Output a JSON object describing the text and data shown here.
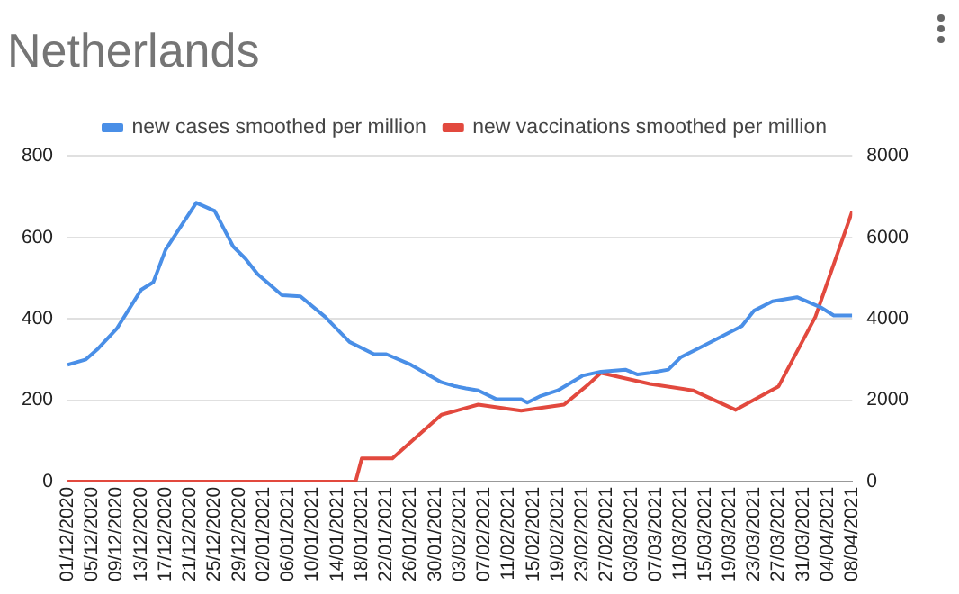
{
  "chart_data": {
    "type": "line",
    "title": "Netherlands",
    "legend": "top",
    "grid": "y",
    "marker": "none",
    "line_style": "solid",
    "xlim": [
      "2020-12-01",
      "2021-04-08"
    ],
    "xticks": [
      {
        "value": "2020-12-01",
        "label": "01/12/2020"
      },
      {
        "value": "2020-12-05",
        "label": "05/12/2020"
      },
      {
        "value": "2020-12-09",
        "label": "09/12/2020"
      },
      {
        "value": "2020-12-13",
        "label": "13/12/2020"
      },
      {
        "value": "2020-12-17",
        "label": "17/12/2020"
      },
      {
        "value": "2020-12-21",
        "label": "21/12/2020"
      },
      {
        "value": "2020-12-25",
        "label": "25/12/2020"
      },
      {
        "value": "2020-12-29",
        "label": "29/12/2020"
      },
      {
        "value": "2021-01-02",
        "label": "02/01/2021"
      },
      {
        "value": "2021-01-06",
        "label": "06/01/2021"
      },
      {
        "value": "2021-01-10",
        "label": "10/01/2021"
      },
      {
        "value": "2021-01-14",
        "label": "14/01/2021"
      },
      {
        "value": "2021-01-18",
        "label": "18/01/2021"
      },
      {
        "value": "2021-01-22",
        "label": "22/01/2021"
      },
      {
        "value": "2021-01-26",
        "label": "26/01/2021"
      },
      {
        "value": "2021-01-30",
        "label": "30/01/2021"
      },
      {
        "value": "2021-02-03",
        "label": "03/02/2021"
      },
      {
        "value": "2021-02-07",
        "label": "07/02/2021"
      },
      {
        "value": "2021-02-11",
        "label": "11/02/2021"
      },
      {
        "value": "2021-02-15",
        "label": "15/02/2021"
      },
      {
        "value": "2021-02-19",
        "label": "19/02/2021"
      },
      {
        "value": "2021-02-23",
        "label": "23/02/2021"
      },
      {
        "value": "2021-02-27",
        "label": "27/02/2021"
      },
      {
        "value": "2021-03-03",
        "label": "03/03/2021"
      },
      {
        "value": "2021-03-07",
        "label": "07/03/2021"
      },
      {
        "value": "2021-03-11",
        "label": "11/03/2021"
      },
      {
        "value": "2021-03-15",
        "label": "15/03/2021"
      },
      {
        "value": "2021-03-19",
        "label": "19/03/2021"
      },
      {
        "value": "2021-03-23",
        "label": "23/03/2021"
      },
      {
        "value": "2021-03-27",
        "label": "27/03/2021"
      },
      {
        "value": "2021-03-31",
        "label": "31/03/2021"
      },
      {
        "value": "2021-04-04",
        "label": "04/04/2021"
      },
      {
        "value": "2021-04-08",
        "label": "08/04/2021"
      }
    ],
    "ylim": [
      0,
      800
    ],
    "yticks": [
      0,
      200,
      400,
      600,
      800
    ],
    "y2lim": [
      0,
      8000
    ],
    "y2ticks": [
      0,
      2000,
      4000,
      6000,
      8000
    ],
    "series": [
      {
        "name": "new cases smoothed per million",
        "color": "#4a8fe7",
        "x": [
          "2020-12-01",
          "2020-12-04",
          "2020-12-06",
          "2020-12-09",
          "2020-12-13",
          "2020-12-15",
          "2020-12-17",
          "2020-12-22",
          "2020-12-25",
          "2020-12-28",
          "2020-12-30",
          "2021-01-01",
          "2021-01-05",
          "2021-01-08",
          "2021-01-12",
          "2021-01-16",
          "2021-01-20",
          "2021-01-22",
          "2021-01-26",
          "2021-01-31",
          "2021-02-02",
          "2021-02-04",
          "2021-02-06",
          "2021-02-09",
          "2021-02-13",
          "2021-02-14",
          "2021-02-16",
          "2021-02-19",
          "2021-02-23",
          "2021-02-26",
          "2021-03-02",
          "2021-03-04",
          "2021-03-06",
          "2021-03-09",
          "2021-03-11",
          "2021-03-14",
          "2021-03-18",
          "2021-03-21",
          "2021-03-23",
          "2021-03-26",
          "2021-03-30",
          "2021-04-03",
          "2021-04-05",
          "2021-04-08"
        ],
        "values": [
          287,
          300,
          327,
          375,
          471,
          490,
          570,
          685,
          665,
          578,
          548,
          510,
          458,
          455,
          405,
          343,
          313,
          313,
          287,
          244,
          235,
          229,
          224,
          202,
          202,
          194,
          209,
          224,
          260,
          270,
          275,
          263,
          267,
          275,
          305,
          328,
          359,
          382,
          420,
          443,
          453,
          427,
          408,
          408
        ]
      },
      {
        "name": "new vaccinations smoothed per million",
        "color": "#e2493e",
        "axis": "y2",
        "x": [
          "2020-12-01",
          "2021-01-17",
          "2021-01-18",
          "2021-01-23",
          "2021-01-31",
          "2021-02-06",
          "2021-02-13",
          "2021-02-20",
          "2021-02-24",
          "2021-02-26",
          "2021-03-06",
          "2021-03-13",
          "2021-03-20",
          "2021-03-27",
          "2021-04-02",
          "2021-04-08"
        ],
        "values": [
          0,
          0,
          570,
          570,
          1640,
          1890,
          1740,
          1890,
          2390,
          2670,
          2400,
          2240,
          1760,
          2340,
          4050,
          6640
        ]
      }
    ]
  }
}
